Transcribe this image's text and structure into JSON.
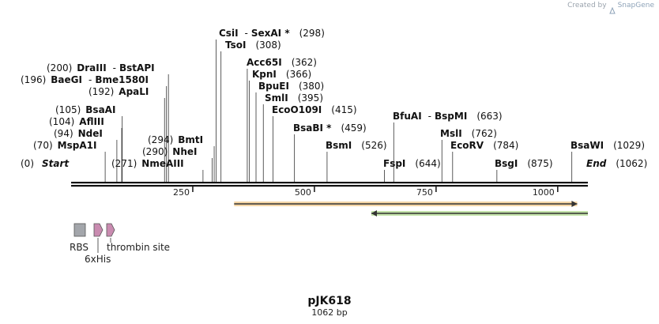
{
  "credit": {
    "prefix": "Created by",
    "brand": "SnapGene"
  },
  "plasmid": {
    "name": "pJK618",
    "size_label": "1062 bp"
  },
  "axis": {
    "min": 0,
    "max": 1062,
    "ticks": [
      250,
      500,
      750,
      1000
    ]
  },
  "sites": [
    {
      "name": "Start",
      "pos": "(0)",
      "bp": 0,
      "style": "start"
    },
    {
      "name": "MspA1I",
      "pos": "(70)",
      "bp": 70
    },
    {
      "name": "NdeI",
      "pos": "(94)",
      "bp": 94
    },
    {
      "name": "AflIII",
      "pos": "(104)",
      "bp": 104
    },
    {
      "name": "BsaAI",
      "pos": "(105)",
      "bp": 105
    },
    {
      "name": "ApaLI",
      "pos": "(192)",
      "bp": 192
    },
    {
      "name": "BaeGI",
      "pos": "(196)",
      "bp": 196,
      "partner": "Bme1580I"
    },
    {
      "name": "DraIII",
      "pos": "(200)",
      "bp": 200,
      "partner": "BstAPI"
    },
    {
      "name": "NmeAIII",
      "pos": "(271)",
      "bp": 271
    },
    {
      "name": "NheI",
      "pos": "(290)",
      "bp": 290
    },
    {
      "name": "BmtI",
      "pos": "(294)",
      "bp": 294
    },
    {
      "name": "TsoI",
      "pos": "(308)",
      "bp": 308
    },
    {
      "name": "CsiI",
      "pos": "(298)",
      "bp": 298,
      "partner": "SexAI *"
    },
    {
      "name": "Acc65I",
      "pos": "(362)",
      "bp": 362
    },
    {
      "name": "KpnI",
      "pos": "(366)",
      "bp": 366
    },
    {
      "name": "BpuEI",
      "pos": "(380)",
      "bp": 380
    },
    {
      "name": "SmlI",
      "pos": "(395)",
      "bp": 395
    },
    {
      "name": "EcoO109I",
      "pos": "(415)",
      "bp": 415
    },
    {
      "name": "BsaBI *",
      "pos": "(459)",
      "bp": 459
    },
    {
      "name": "BsmI",
      "pos": "(526)",
      "bp": 526
    },
    {
      "name": "FspI",
      "pos": "(644)",
      "bp": 644
    },
    {
      "name": "BfuAI",
      "pos": "(663)",
      "bp": 663,
      "partner": "BspMI"
    },
    {
      "name": "MslI",
      "pos": "(762)",
      "bp": 762
    },
    {
      "name": "EcoRV",
      "pos": "(784)",
      "bp": 784
    },
    {
      "name": "BsgI",
      "pos": "(875)",
      "bp": 875
    },
    {
      "name": "BsaWI",
      "pos": "(1029)",
      "bp": 1029
    },
    {
      "name": "End",
      "pos": "(1062)",
      "bp": 1062,
      "style": "end"
    }
  ],
  "features": [
    {
      "name": "orange-arrow",
      "start": 335,
      "end": 1040,
      "color": "#e8a33a",
      "dir": "right"
    },
    {
      "name": "green-arrow",
      "start": 617,
      "end": 1062,
      "color": "#7cc243",
      "dir": "left"
    }
  ],
  "legend": [
    {
      "label": "RBS",
      "color": "#a3a6ab",
      "shape": "box"
    },
    {
      "label": "6xHis",
      "color": "#c98bb0",
      "shape": "arrow"
    },
    {
      "label": "thrombin site",
      "color": "#c98bb0",
      "shape": "arrow"
    }
  ]
}
